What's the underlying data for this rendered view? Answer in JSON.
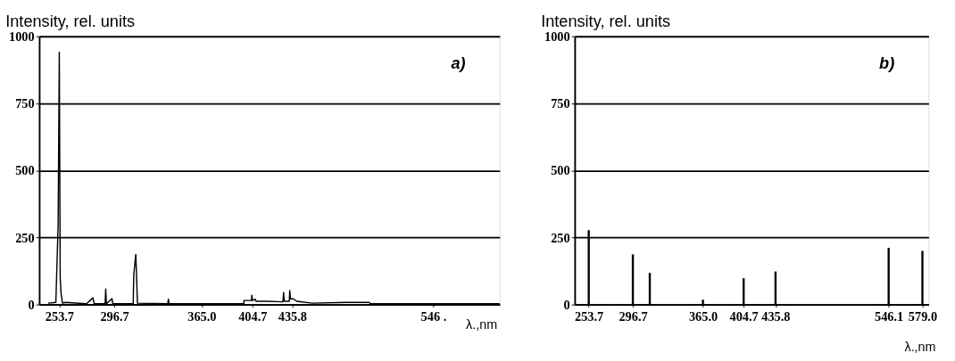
{
  "chart_data": [
    {
      "type": "line",
      "ylabel": "Intensity, rel. units",
      "xlabel": "λ.,nm",
      "annotations": [
        "a)"
      ],
      "x": [
        245,
        251,
        252.8,
        253.7,
        254.4,
        255.1,
        256.2,
        258.4,
        275,
        280,
        281,
        289.5,
        290,
        290.5,
        294.9,
        295.5,
        311.5,
        311.9,
        313.5,
        314.8,
        338.5,
        339,
        339.5,
        398,
        398.1,
        404,
        404.2,
        404.8,
        406.9,
        407.5,
        416,
        428.5,
        429.1,
        429.6,
        433.5,
        433.9,
        434.5,
        436.3,
        439.4,
        451.4,
        478,
        496,
        497,
        598
      ],
      "series": [
        {
          "color": "#000000",
          "values": [
            5,
            8,
            300,
            941,
            100,
            40,
            5,
            8,
            3,
            25,
            3,
            3,
            58,
            3,
            22,
            3,
            3,
            110,
            187,
            5,
            3,
            20,
            3,
            3,
            15,
            15,
            35,
            15,
            20,
            12,
            12,
            10,
            45,
            12,
            12,
            52,
            20,
            22,
            12,
            5,
            8,
            8,
            3,
            3
          ]
        }
      ],
      "xlim": [
        238,
        598
      ],
      "xticks": [
        253.7,
        296.7,
        {
          "value": 365,
          "label": "365.0"
        },
        404.7,
        435.8,
        {
          "value": 546.1,
          "label": "546 ."
        }
      ],
      "ylim": [
        0,
        1000
      ],
      "yticks": [
        0,
        250,
        500,
        750,
        1000
      ],
      "grid": "y",
      "marker": "none",
      "line_style": "solid"
    },
    {
      "type": "bar",
      "ylabel": "Intensity, rel. units",
      "xlabel": "λ.,nm",
      "annotations": [
        "b)"
      ],
      "x": [
        253.7,
        296.7,
        313.2,
        365,
        404.7,
        435.8,
        546.1,
        579
      ],
      "series": [
        {
          "color": "#000000",
          "values": [
            277,
            187,
            118,
            18,
            98,
            123,
            211,
            200
          ]
        }
      ],
      "xlim": [
        240,
        585
      ],
      "xticks": [
        253.7,
        296.7,
        {
          "value": 365,
          "label": "365.0"
        },
        404.7,
        435.8,
        546.1,
        {
          "value": 579,
          "label": "579.0"
        }
      ],
      "ylim": [
        0,
        1000
      ],
      "yticks": [
        0,
        250,
        500,
        750,
        1000
      ],
      "grid": "y"
    }
  ]
}
